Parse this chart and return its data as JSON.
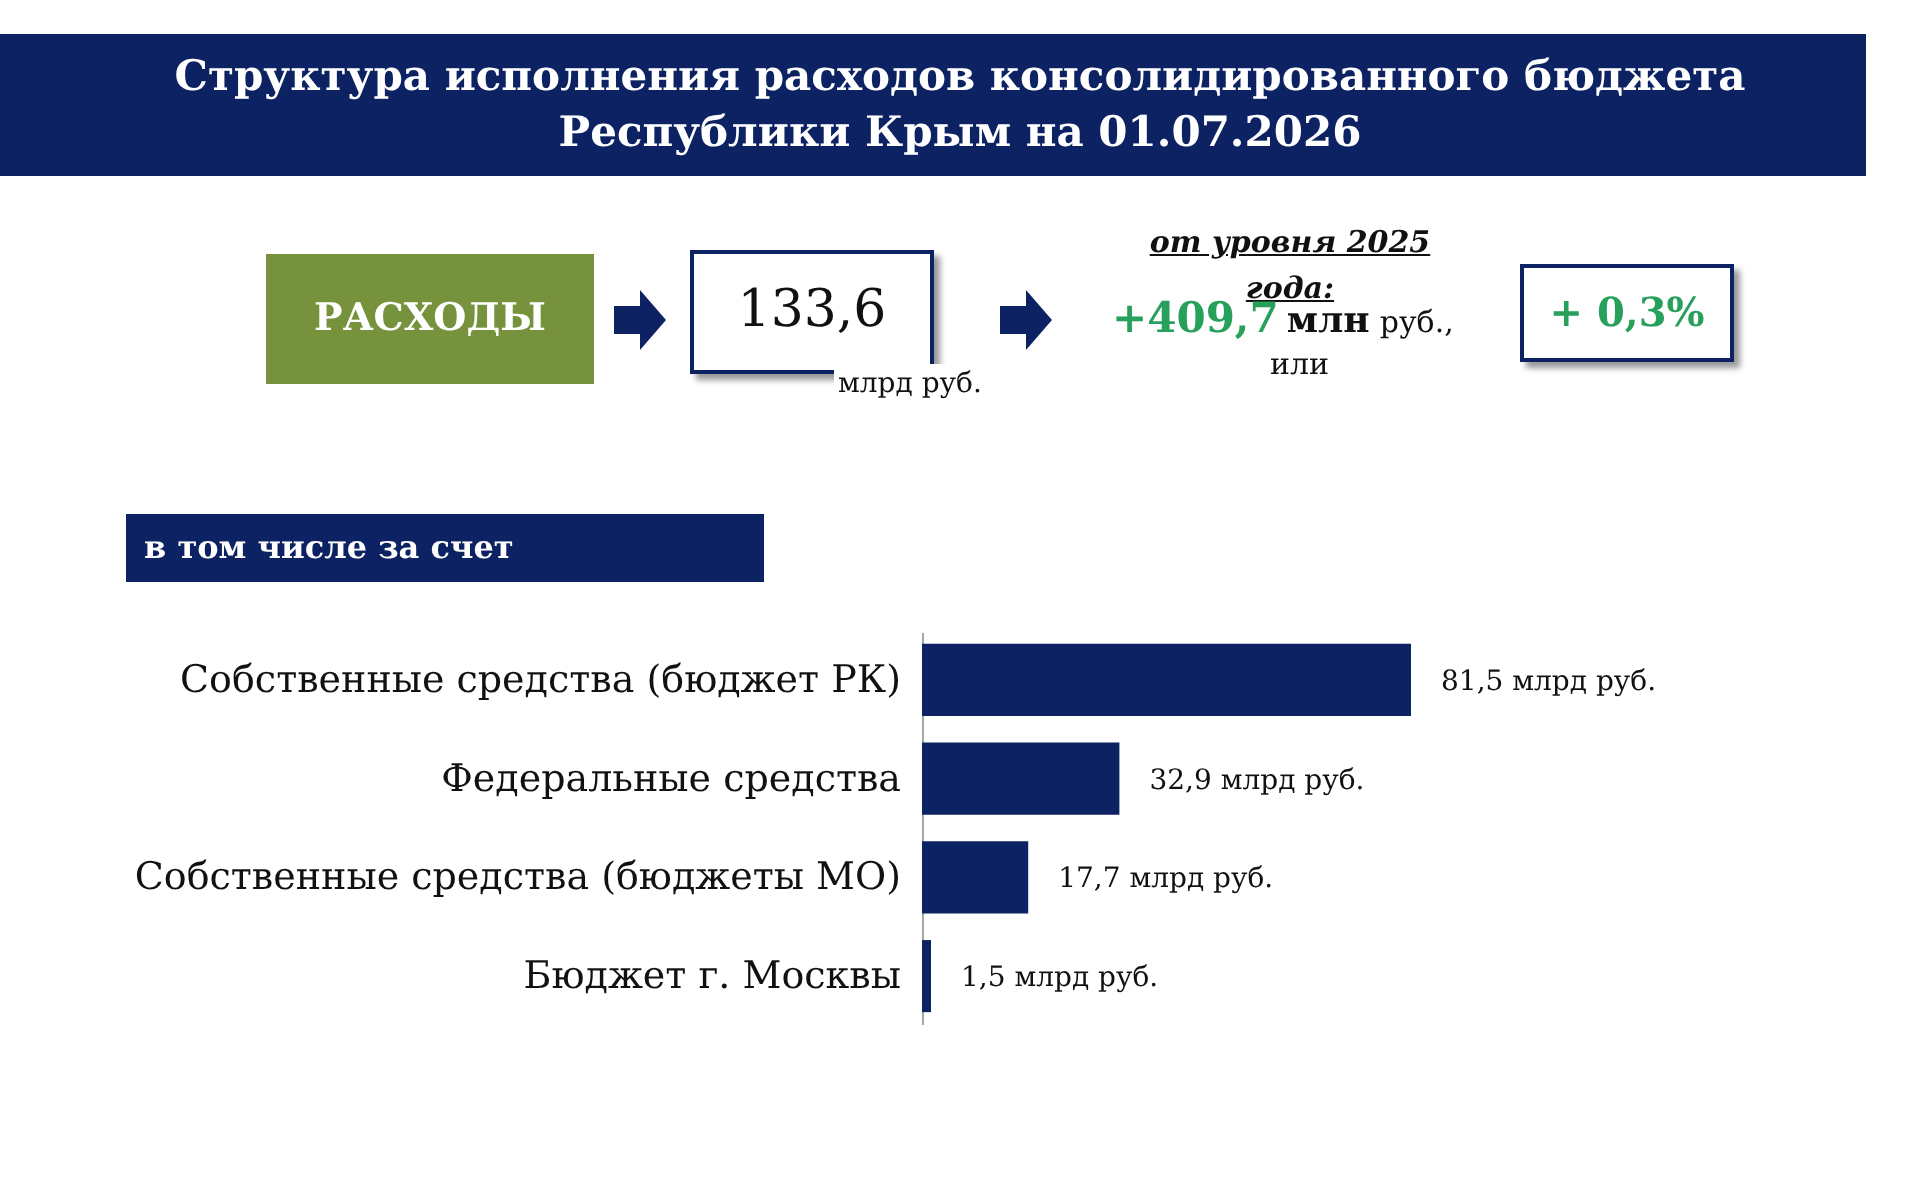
{
  "chart_data": {
    "type": "bar",
    "orientation": "horizontal",
    "title": "Структура исполнения расходов консолидированного бюджета Республики Крым на 01.07.2026",
    "subtitle": "в том числе за счет",
    "categories": [
      "Собственные средства (бюджет РК)",
      "Федеральные средства",
      "Собственные средства (бюджеты МО)",
      "Бюджет г. Москвы"
    ],
    "values": [
      81.5,
      32.9,
      17.7,
      1.5
    ],
    "value_labels": [
      "81,5 млрд руб.",
      "32,9 млрд руб.",
      "17,7 млрд руб.",
      "1,5 млрд руб."
    ],
    "color": "#0d2262",
    "tick_labels": "y",
    "annotations": [
      "РАСХОДЫ",
      "133,6",
      "млрд руб.",
      "от уровня 2025 года:",
      "+409,7",
      "млн",
      "руб.,",
      "или",
      "+ 0,3%"
    ]
  }
}
